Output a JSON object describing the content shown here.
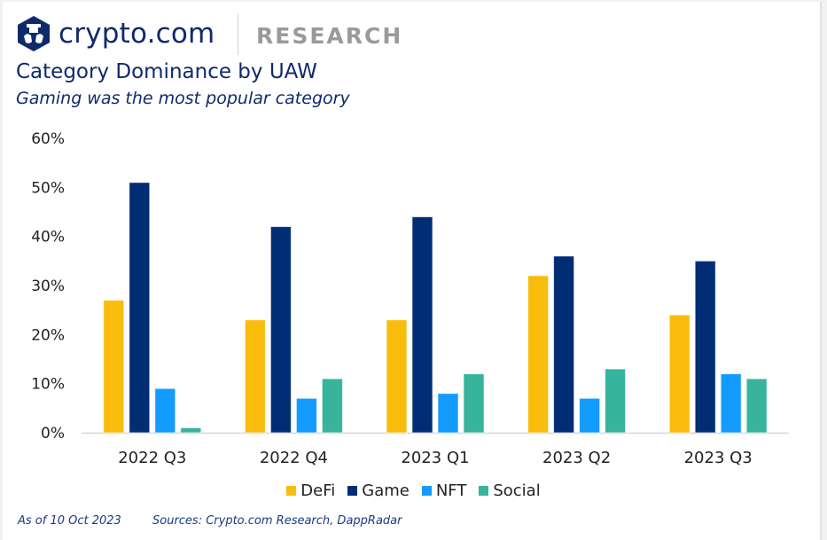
{
  "header": {
    "brand": "crypto.com",
    "section": "RESEARCH",
    "logo_icon": "crypto-com-lion-hexagon-icon"
  },
  "colors": {
    "brand_navy": "#0e2a6b",
    "section_gray": "#9a9a9a"
  },
  "chart_data": {
    "type": "bar",
    "title": "Category Dominance by UAW",
    "subtitle": "Gaming was the most popular category",
    "xlabel": "",
    "ylabel": "",
    "categories": [
      "2022 Q3",
      "2022 Q4",
      "2023 Q1",
      "2023 Q2",
      "2023 Q3"
    ],
    "series": [
      {
        "name": "DeFi",
        "color": "#f9bc0c",
        "values": [
          27,
          23,
          23,
          32,
          24
        ]
      },
      {
        "name": "Game",
        "color": "#002d74",
        "values": [
          51,
          42,
          44,
          36,
          35
        ]
      },
      {
        "name": "NFT",
        "color": "#149bff",
        "values": [
          9,
          7,
          8,
          7,
          12
        ]
      },
      {
        "name": "Social",
        "color": "#36b49c",
        "values": [
          1,
          11,
          12,
          13,
          11
        ]
      }
    ],
    "ylim": [
      0,
      60
    ],
    "yticks": [
      0,
      10,
      20,
      30,
      40,
      50,
      60
    ],
    "ytick_labels": [
      "0%",
      "10%",
      "20%",
      "30%",
      "40%",
      "50%",
      "60%"
    ],
    "grid": false,
    "legend_position": "bottom-center"
  },
  "footer": {
    "as_of": "As of 10 Oct 2023",
    "sources": "Sources: Crypto.com Research, DappRadar"
  }
}
